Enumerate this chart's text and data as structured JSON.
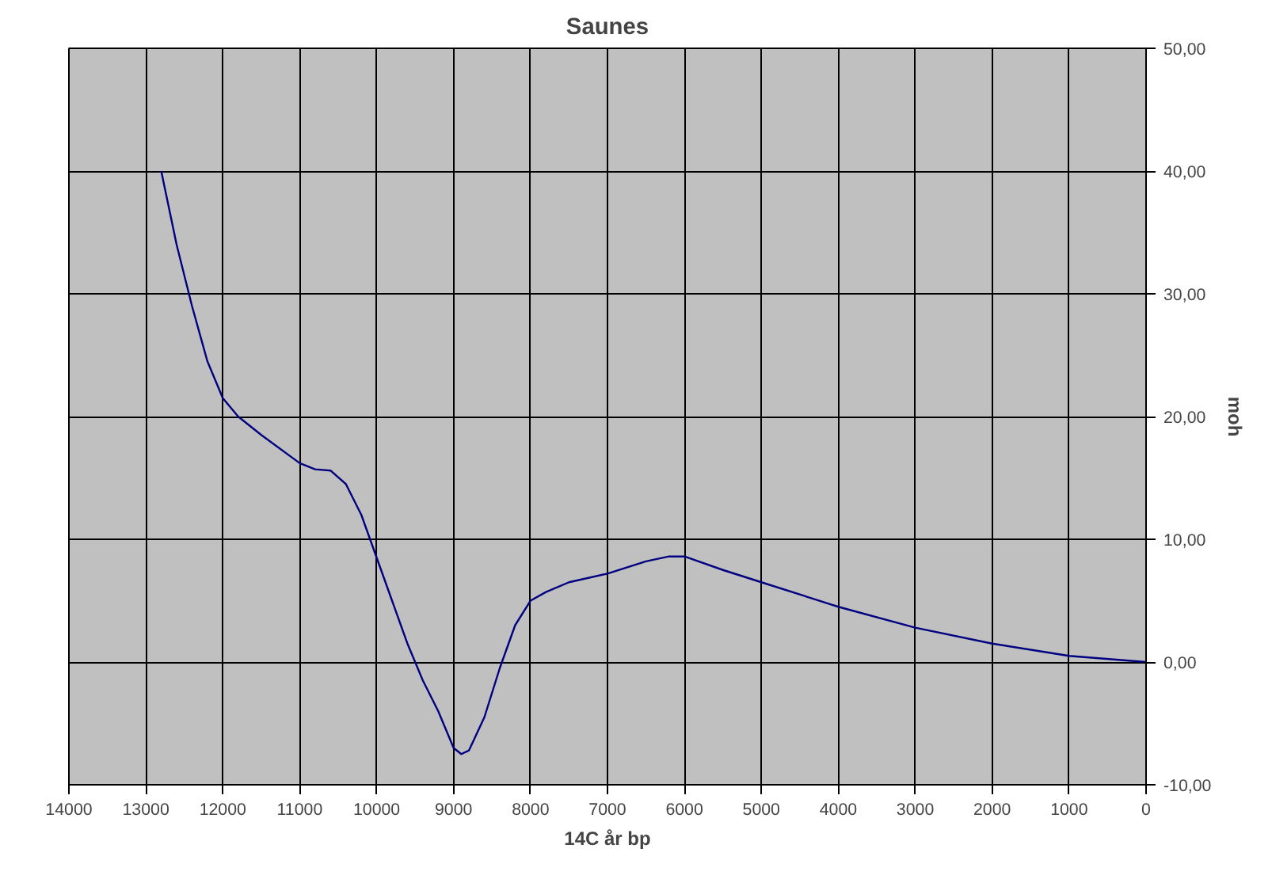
{
  "chart_data": {
    "type": "line",
    "title": "Saunes",
    "xlabel": "14C år bp",
    "ylabel": "moh",
    "xlim": [
      14000,
      0
    ],
    "xticks": [
      14000,
      13000,
      12000,
      11000,
      10000,
      9000,
      8000,
      7000,
      6000,
      5000,
      4000,
      3000,
      2000,
      1000,
      0
    ],
    "ylim": [
      -10,
      50
    ],
    "yticks": [
      {
        "value": -10,
        "label": "-10,00"
      },
      {
        "value": 0,
        "label": "0,00"
      },
      {
        "value": 10,
        "label": "10,00"
      },
      {
        "value": 20,
        "label": "20,00"
      },
      {
        "value": 30,
        "label": "30,00"
      },
      {
        "value": 40,
        "label": "40,00"
      },
      {
        "value": 50,
        "label": "50,00"
      }
    ],
    "grid": true,
    "marker": "none",
    "line_style": "solid",
    "x": [
      12800,
      12600,
      12400,
      12200,
      12000,
      11800,
      11500,
      11000,
      10800,
      10600,
      10400,
      10200,
      10000,
      9800,
      9600,
      9400,
      9200,
      9000,
      8900,
      8800,
      8600,
      8400,
      8200,
      8000,
      7800,
      7500,
      7000,
      6500,
      6200,
      6000,
      5500,
      5000,
      4000,
      3000,
      2000,
      1000,
      0
    ],
    "series": [
      {
        "color": "#000080",
        "values": [
          40,
          34,
          29,
          24.5,
          21.5,
          20,
          18.5,
          16.2,
          15.7,
          15.6,
          14.5,
          12,
          8.5,
          5,
          1.5,
          -1.5,
          -4,
          -7,
          -7.5,
          -7.2,
          -4.5,
          -0.5,
          3,
          5,
          5.7,
          6.5,
          7.2,
          8.2,
          8.6,
          8.6,
          7.5,
          6.5,
          4.5,
          2.8,
          1.5,
          0.5,
          0
        ]
      }
    ]
  }
}
